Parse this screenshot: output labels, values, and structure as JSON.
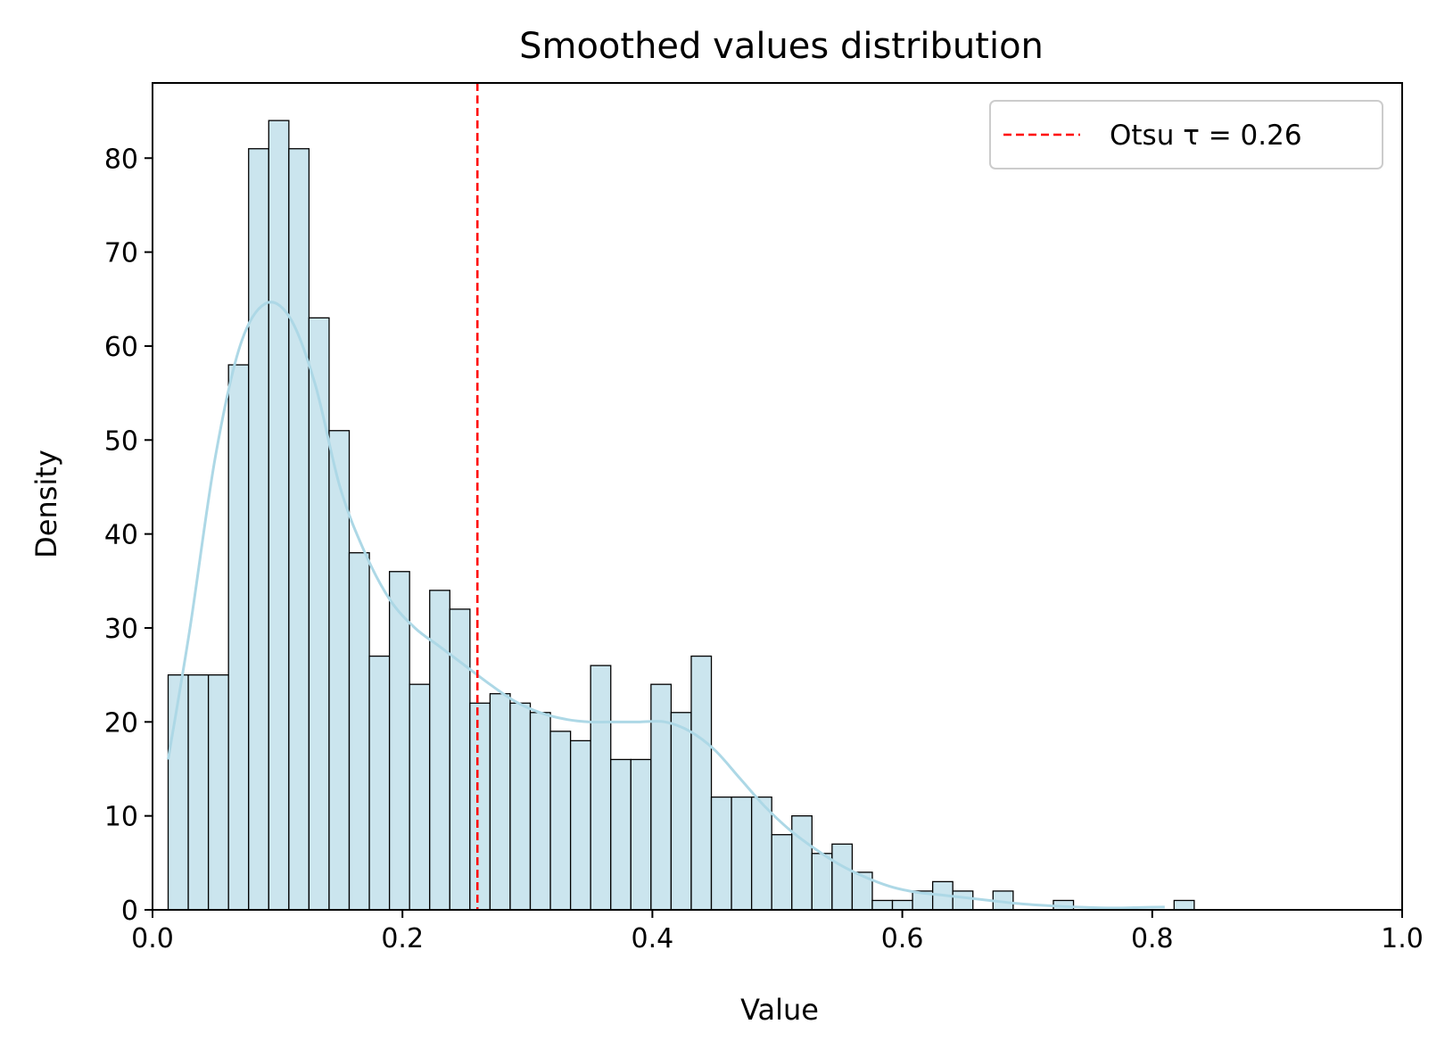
{
  "chart_data": {
    "type": "bar",
    "title": "Smoothed values distribution",
    "xlabel": "Value",
    "ylabel": "Density",
    "xlim": [
      0.0,
      1.0
    ],
    "ylim": [
      0,
      88
    ],
    "xticks": [
      0.0,
      0.2,
      0.4,
      0.6,
      0.8,
      1.0
    ],
    "xtick_labels": [
      "0.0",
      "0.2",
      "0.4",
      "0.6",
      "0.8",
      "1.0"
    ],
    "yticks": [
      0,
      10,
      20,
      30,
      40,
      50,
      60,
      70,
      80
    ],
    "ytick_labels": [
      "0",
      "10",
      "20",
      "30",
      "40",
      "50",
      "60",
      "70",
      "80"
    ],
    "grid": false,
    "legend": {
      "placement": "top-right",
      "entries": [
        "Otsu τ = 0.26"
      ]
    },
    "histogram": {
      "bin_start": 0.0125,
      "bin_width": 0.0161,
      "values": [
        25,
        25,
        25,
        58,
        81,
        84,
        81,
        63,
        51,
        38,
        27,
        36,
        24,
        34,
        32,
        22,
        23,
        22,
        21,
        19,
        18,
        26,
        16,
        16,
        24,
        21,
        27,
        12,
        12,
        12,
        8,
        10,
        6,
        7,
        4,
        1,
        1,
        2,
        3,
        2,
        0,
        2,
        0,
        0,
        1,
        0,
        0,
        0,
        0,
        0,
        1
      ],
      "fill_color": "#cbe5ee",
      "edge_color": "#000000"
    },
    "kde": {
      "x": [
        0.0125,
        0.03,
        0.05,
        0.07,
        0.09,
        0.11,
        0.13,
        0.15,
        0.17,
        0.19,
        0.21,
        0.23,
        0.25,
        0.27,
        0.29,
        0.31,
        0.33,
        0.35,
        0.37,
        0.39,
        0.41,
        0.43,
        0.45,
        0.47,
        0.49,
        0.51,
        0.53,
        0.55,
        0.57,
        0.59,
        0.61,
        0.63,
        0.65,
        0.67,
        0.69,
        0.71,
        0.73,
        0.75,
        0.77,
        0.79,
        0.81
      ],
      "y": [
        16,
        30,
        48,
        60,
        64.5,
        63,
        56,
        45,
        38,
        33,
        30,
        28,
        26,
        24,
        22.2,
        21,
        20.3,
        20,
        20,
        20,
        20,
        19,
        17,
        14,
        11,
        8.5,
        6.5,
        4.8,
        3.5,
        2.5,
        1.9,
        1.6,
        1.3,
        1.0,
        0.7,
        0.5,
        0.35,
        0.25,
        0.2,
        0.25,
        0.3
      ],
      "color": "#add8e6"
    },
    "threshold": {
      "x": 0.26,
      "label": "Otsu τ = 0.26",
      "color": "#ff0000",
      "style": "dashed"
    }
  }
}
